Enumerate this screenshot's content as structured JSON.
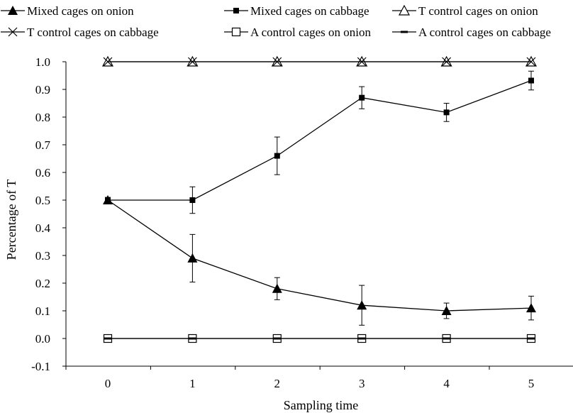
{
  "chart_data": {
    "type": "line",
    "xlabel": "Sampling time",
    "ylabel": "Percentage of T",
    "x": [
      0,
      1,
      2,
      3,
      4,
      5
    ],
    "x_tick_labels": [
      "0",
      "1",
      "2",
      "3",
      "4",
      "5"
    ],
    "ylim": [
      -0.1,
      1.0
    ],
    "y_tick_labels": [
      "-0.1",
      "0.0",
      "0.1",
      "0.2",
      "0.3",
      "0.4",
      "0.5",
      "0.6",
      "0.7",
      "0.8",
      "0.9",
      "1.0"
    ],
    "grid": false,
    "legend_position": "top",
    "series": [
      {
        "name": "Mixed cages on onion",
        "marker": "filled-triangle",
        "values": [
          0.5,
          0.29,
          0.18,
          0.12,
          0.1,
          0.11
        ],
        "error": [
          0.01,
          0.086,
          0.04,
          0.072,
          0.028,
          0.043
        ]
      },
      {
        "name": "Mixed cages on cabbage",
        "marker": "filled-square",
        "values": [
          0.5,
          0.5,
          0.66,
          0.87,
          0.817,
          0.932
        ],
        "error": [
          0.0,
          0.048,
          0.068,
          0.04,
          0.033,
          0.034
        ]
      },
      {
        "name": "T control cages on onion",
        "marker": "open-triangle",
        "values": [
          1.0,
          1.0,
          1.0,
          1.0,
          1.0,
          1.0
        ]
      },
      {
        "name": "T control cages on cabbage",
        "marker": "x",
        "values": [
          1.0,
          1.0,
          1.0,
          1.0,
          1.0,
          1.0
        ]
      },
      {
        "name": "A control cages on onion",
        "marker": "open-square",
        "values": [
          0.0,
          0.0,
          0.0,
          0.0,
          0.0,
          0.0
        ]
      },
      {
        "name": "A control cages on cabbage",
        "marker": "dash",
        "values": [
          0.0,
          0.0,
          0.0,
          0.0,
          0.0,
          0.0
        ]
      }
    ]
  }
}
